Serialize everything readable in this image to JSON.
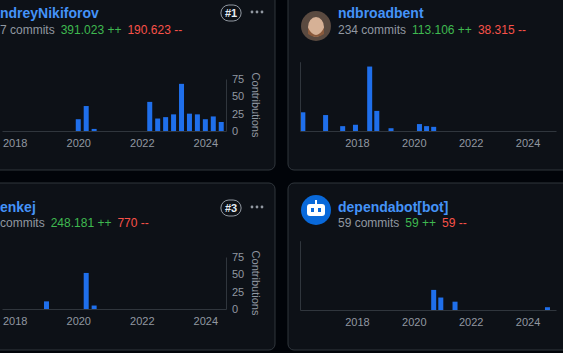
{
  "chart_data": [
    {
      "type": "bar",
      "title": "ndreyNikiforov",
      "annotations": [
        "7 commits",
        "391.023 ++",
        "190.623 --",
        "#1"
      ],
      "ylabel": "Contributions",
      "x": [
        2020.0,
        2020.25,
        2020.5,
        2022.25,
        2022.5,
        2022.75,
        2023.0,
        2023.25,
        2023.5,
        2023.75,
        2024.0,
        2024.25,
        2024.5
      ],
      "values": [
        17,
        36,
        3,
        42,
        18,
        20,
        24,
        68,
        25,
        24,
        17,
        21,
        13
      ],
      "color": "#1f6feb",
      "xlim": [
        2017.6,
        2024.65
      ],
      "xticks": [
        2018,
        2020,
        2022,
        2024
      ],
      "ylim": [
        0,
        75
      ],
      "yticks": [
        0,
        25,
        50,
        75
      ]
    },
    {
      "type": "bar",
      "title": "ndbroadbent",
      "annotations": [
        "234 commits",
        "113.106 ++",
        "38.315 --"
      ],
      "x": [
        2016.1,
        2016.9,
        2017.5,
        2017.95,
        2018.45,
        2018.7,
        2019.2,
        2020.2,
        2020.45,
        2020.7
      ],
      "values": [
        27,
        23,
        7,
        9,
        93,
        29,
        4,
        10,
        7,
        6
      ],
      "color": "#1f6feb",
      "xlim": [
        2016,
        2025
      ],
      "xticks": [
        2018,
        2020,
        2022,
        2024
      ],
      "ylim": [
        0,
        100
      ],
      "tick_labels": "x"
    },
    {
      "type": "bar",
      "title": "enkej",
      "annotations": [
        "commits",
        "248.181 ++",
        "770 --",
        "#3"
      ],
      "ylabel": "Contributions",
      "x": [
        2019.0,
        2020.25,
        2020.5
      ],
      "values": [
        11,
        52,
        5
      ],
      "color": "#1f6feb",
      "xlim": [
        2017.6,
        2024.65
      ],
      "xticks": [
        2018,
        2020,
        2022,
        2024
      ],
      "ylim": [
        0,
        75
      ],
      "yticks": [
        0,
        25,
        50,
        75
      ]
    },
    {
      "type": "bar",
      "title": "dependabot[bot]",
      "annotations": [
        "59 commits",
        "59 ++",
        "59 --"
      ],
      "x": [
        2020.7,
        2020.95,
        2021.45,
        2024.7
      ],
      "values": [
        29,
        18,
        12,
        4
      ],
      "color": "#1f6feb",
      "xlim": [
        2016,
        2025
      ],
      "xticks": [
        2018,
        2020,
        2022,
        2024
      ],
      "ylim": [
        0,
        100
      ],
      "tick_labels": "x"
    }
  ]
}
